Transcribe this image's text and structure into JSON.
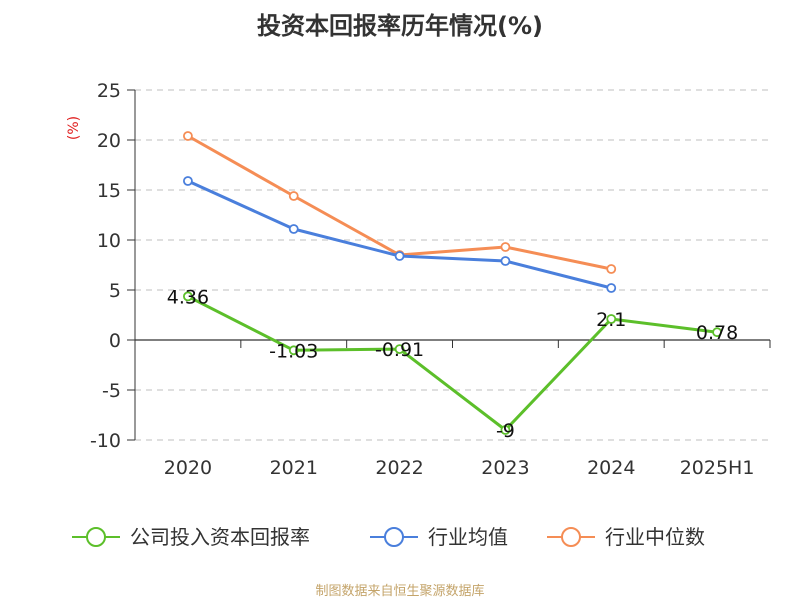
{
  "chart_data": {
    "type": "line",
    "title": "投资本回报率历年情况(%)",
    "ylabel": "(%)",
    "xlabel": "",
    "categories": [
      "2020",
      "2021",
      "2022",
      "2023",
      "2024",
      "2025H1"
    ],
    "ylim": [
      -10,
      25
    ],
    "yticks": [
      -10,
      -5,
      0,
      5,
      10,
      15,
      20,
      25
    ],
    "grid": true,
    "legend_position": "bottom",
    "series": [
      {
        "name": "公司投入资本回报率",
        "color": "#5cbf2a",
        "values": [
          4.36,
          -1.03,
          -0.91,
          -9,
          2.1,
          0.78
        ],
        "labels": [
          "4.36",
          "-1.03",
          "-0.91",
          "-9",
          "2.1",
          "0.78"
        ]
      },
      {
        "name": "行业均值",
        "color": "#4a7fdc",
        "values": [
          15.9,
          11.1,
          8.4,
          7.9,
          5.2,
          null
        ]
      },
      {
        "name": "行业中位数",
        "color": "#f58d55",
        "values": [
          20.4,
          14.4,
          8.5,
          9.3,
          7.1,
          null
        ]
      }
    ]
  },
  "source": "制图数据来自恒生聚源数据库"
}
